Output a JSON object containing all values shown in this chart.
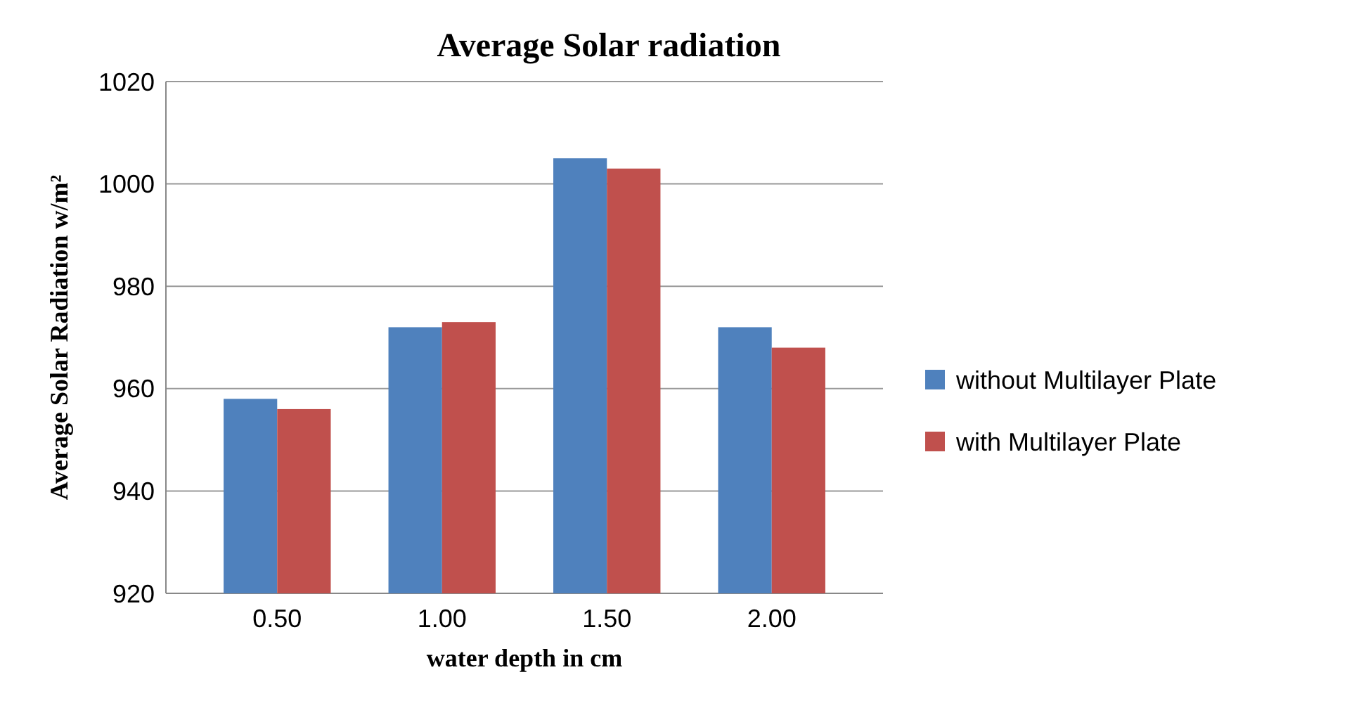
{
  "chart_data": {
    "type": "bar",
    "title": "Average Solar radiation",
    "xlabel": "water depth in cm",
    "ylabel": "Average Solar Radiation w/m²",
    "categories": [
      "0.50",
      "1.00",
      "1.50",
      "2.00"
    ],
    "series": [
      {
        "name": "without Multilayer Plate",
        "color": "#4f81bd",
        "values": [
          958,
          972,
          1005,
          972
        ]
      },
      {
        "name": "with Multilayer Plate",
        "color": "#c0504d",
        "values": [
          956,
          973,
          1003,
          968
        ]
      }
    ],
    "ylim": [
      920,
      1020
    ],
    "yticks": [
      920,
      940,
      960,
      980,
      1000,
      1020
    ],
    "grid": "y",
    "legend": "right"
  }
}
